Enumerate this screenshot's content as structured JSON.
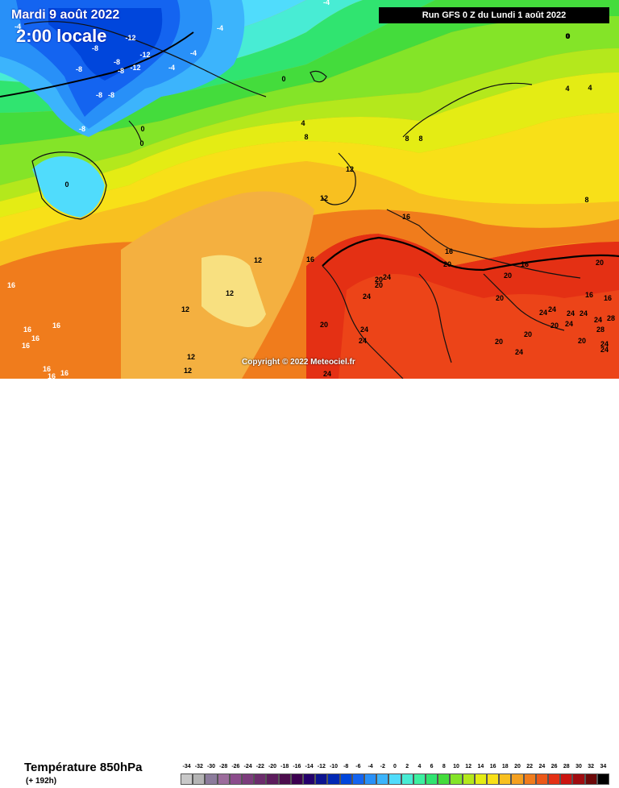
{
  "header": {
    "date_title": "Mardi 9 août 2022",
    "local_time": "2:00 locale",
    "run_info": "Run GFS 0 Z du Lundi 1 août 2022"
  },
  "copyright": "Copyright © 2022 Meteociel.fr",
  "footer": {
    "parameter_title": "Température 850hPa",
    "forecast_hour": "(+ 192h)"
  },
  "legend": {
    "values": [
      "-34",
      "-32",
      "-30",
      "-28",
      "-26",
      "-24",
      "-22",
      "-20",
      "-18",
      "-16",
      "-14",
      "-12",
      "-10",
      "-8",
      "-6",
      "-4",
      "-2",
      "0",
      "2",
      "4",
      "6",
      "8",
      "10",
      "12",
      "14",
      "16",
      "18",
      "20",
      "22",
      "24",
      "26",
      "28",
      "30",
      "32",
      "34"
    ],
    "colors": [
      "#c8c8c8",
      "#b4b4b4",
      "#8c7c9c",
      "#9c6c9c",
      "#8c4c8c",
      "#7c3c7c",
      "#6c2c6c",
      "#5c1c5c",
      "#4c0c4c",
      "#3c0050",
      "#24006c",
      "#0c1490",
      "#0028b4",
      "#0046dc",
      "#1464f0",
      "#2890f8",
      "#3cb4fc",
      "#50dcfc",
      "#48ecd4",
      "#3cf0a0",
      "#30e470",
      "#44dc3c",
      "#84e428",
      "#b4e81c",
      "#e4ec14",
      "#f8e018",
      "#f8c020",
      "#f4a020",
      "#f07c1c",
      "#ec5818",
      "#e43014",
      "#cc1410",
      "#a00c10",
      "#6c0808",
      "#000000"
    ]
  },
  "map": {
    "labels": [
      {
        "text": "-4"
      },
      {
        "text": "-8"
      },
      {
        "text": "-12"
      },
      {
        "text": "-8"
      },
      {
        "text": "-12"
      },
      {
        "text": "-8"
      },
      {
        "text": "-8"
      },
      {
        "text": "-12"
      },
      {
        "text": "-4"
      },
      {
        "text": "-4"
      },
      {
        "text": "-4"
      },
      {
        "text": "-8"
      },
      {
        "text": "-8"
      },
      {
        "text": "-8"
      },
      {
        "text": "0"
      },
      {
        "text": "0"
      },
      {
        "text": "0"
      },
      {
        "text": "0"
      },
      {
        "text": "-4"
      },
      {
        "text": "0"
      },
      {
        "text": "4"
      },
      {
        "text": "8"
      },
      {
        "text": "4"
      },
      {
        "text": "4"
      },
      {
        "text": "8"
      },
      {
        "text": "8"
      },
      {
        "text": "12"
      },
      {
        "text": "12"
      },
      {
        "text": "16"
      },
      {
        "text": "8"
      },
      {
        "text": "16"
      },
      {
        "text": "20"
      },
      {
        "text": "16"
      },
      {
        "text": "20"
      },
      {
        "text": "20"
      },
      {
        "text": "20"
      },
      {
        "text": "24"
      },
      {
        "text": "24"
      },
      {
        "text": "24"
      },
      {
        "text": "24"
      },
      {
        "text": "16"
      },
      {
        "text": "12"
      },
      {
        "text": "12"
      },
      {
        "text": "12"
      },
      {
        "text": "16"
      },
      {
        "text": "16"
      },
      {
        "text": "16"
      },
      {
        "text": "16"
      },
      {
        "text": "16"
      },
      {
        "text": "12"
      },
      {
        "text": "12"
      },
      {
        "text": "16"
      },
      {
        "text": "16"
      },
      {
        "text": "16"
      },
      {
        "text": "20"
      },
      {
        "text": "24"
      },
      {
        "text": "24"
      },
      {
        "text": "20"
      },
      {
        "text": "20"
      },
      {
        "text": "24"
      },
      {
        "text": "24"
      },
      {
        "text": "24"
      },
      {
        "text": "24"
      },
      {
        "text": "28"
      },
      {
        "text": "24"
      },
      {
        "text": "28"
      },
      {
        "text": "24"
      },
      {
        "text": "20"
      },
      {
        "text": "16"
      },
      {
        "text": "16"
      },
      {
        "text": "20"
      },
      {
        "text": "20"
      },
      {
        "text": "24"
      },
      {
        "text": "24"
      },
      {
        "text": "20"
      },
      {
        "text": "0"
      }
    ]
  }
}
